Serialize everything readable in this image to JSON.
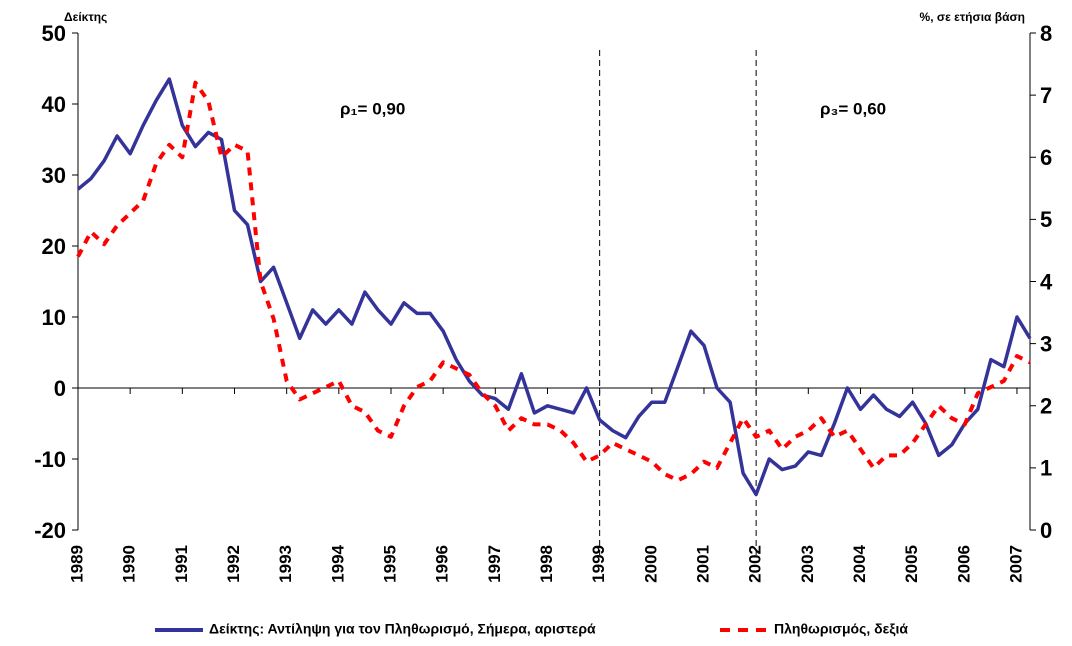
{
  "chart_data": {
    "type": "line",
    "y_label": "Δείκτης",
    "y2_label": "%, σε ετήσια βάση",
    "annotations": [
      "ρ₁= 0,90",
      "ρ₃= 0,60"
    ],
    "vlines": [
      1999,
      2002
    ],
    "x": [
      1989,
      1989.25,
      1989.5,
      1989.75,
      1990,
      1990.25,
      1990.5,
      1990.75,
      1991,
      1991.25,
      1991.5,
      1991.75,
      1992,
      1992.25,
      1992.5,
      1992.75,
      1993,
      1993.25,
      1993.5,
      1993.75,
      1994,
      1994.25,
      1994.5,
      1994.75,
      1995,
      1995.25,
      1995.5,
      1995.75,
      1996,
      1996.25,
      1996.5,
      1996.75,
      1997,
      1997.25,
      1997.5,
      1997.75,
      1998,
      1998.25,
      1998.5,
      1998.75,
      1999,
      1999.25,
      1999.5,
      1999.75,
      2000,
      2000.25,
      2000.5,
      2000.75,
      2001,
      2001.25,
      2001.5,
      2001.75,
      2002,
      2002.25,
      2002.5,
      2002.75,
      2003,
      2003.25,
      2003.5,
      2003.75,
      2004,
      2004.25,
      2004.5,
      2004.75,
      2005,
      2005.25,
      2005.5,
      2005.75,
      2006,
      2006.25,
      2006.5,
      2006.75,
      2007,
      2007.25
    ],
    "series": [
      {
        "name": "Δείκτης: Αντίληψη για τον Πληθωρισμό, Σήμερα, αριστερά",
        "color": "#333399",
        "dash": false,
        "values": [
          28,
          29.5,
          32,
          35.5,
          33,
          37,
          40.5,
          43.5,
          37,
          34,
          36,
          35,
          25,
          23,
          15,
          17,
          12,
          7,
          11,
          9,
          11,
          9,
          13.5,
          11,
          9,
          12,
          10.5,
          10.5,
          8,
          4,
          1,
          -1,
          -1.5,
          -3,
          2,
          -3.5,
          -2.5,
          -3,
          -3.5,
          0,
          -4.5,
          -6,
          -7,
          -4,
          -2,
          -2,
          3,
          8,
          6,
          0,
          -2,
          -12,
          -15,
          -10,
          -11.5,
          -11,
          -9,
          -9.5,
          -5,
          0,
          -3,
          -1,
          -3,
          -4,
          -2,
          -5,
          -9.5,
          -8,
          -5,
          -3,
          4,
          3,
          10,
          7
        ]
      },
      {
        "name": "Πληθωρισμός, δεξιά",
        "color": "#ff0000",
        "dash": true,
        "axis": "y2",
        "values": [
          4.4,
          4.8,
          4.6,
          4.9,
          5.1,
          5.3,
          5.9,
          6.2,
          6.0,
          7.2,
          6.9,
          6.0,
          6.2,
          6.1,
          4.0,
          3.4,
          2.4,
          2.1,
          2.2,
          2.3,
          2.4,
          2.0,
          1.9,
          1.6,
          1.5,
          2.0,
          2.3,
          2.4,
          2.7,
          2.6,
          2.5,
          2.2,
          2.0,
          1.6,
          1.8,
          1.7,
          1.7,
          1.6,
          1.4,
          1.1,
          1.2,
          1.4,
          1.3,
          1.2,
          1.1,
          0.9,
          0.8,
          0.9,
          1.1,
          1.0,
          1.4,
          1.8,
          1.5,
          1.6,
          1.3,
          1.5,
          1.6,
          1.8,
          1.5,
          1.6,
          1.3,
          1.0,
          1.2,
          1.2,
          1.4,
          1.7,
          2.0,
          1.8,
          1.7,
          2.2,
          2.3,
          2.4,
          2.8,
          2.7
        ]
      }
    ],
    "xlim": [
      1989,
      2007.25
    ],
    "xticks": [
      1989,
      1990,
      1991,
      1992,
      1993,
      1994,
      1995,
      1996,
      1997,
      1998,
      1999,
      2000,
      2001,
      2002,
      2003,
      2004,
      2005,
      2006,
      2007
    ],
    "ylim": [
      -20,
      50
    ],
    "yticks": [
      -20,
      -10,
      0,
      10,
      20,
      30,
      40,
      50
    ],
    "y2lim": [
      0,
      8
    ],
    "y2ticks": [
      0,
      1,
      2,
      3,
      4,
      5,
      6,
      7,
      8
    ]
  }
}
